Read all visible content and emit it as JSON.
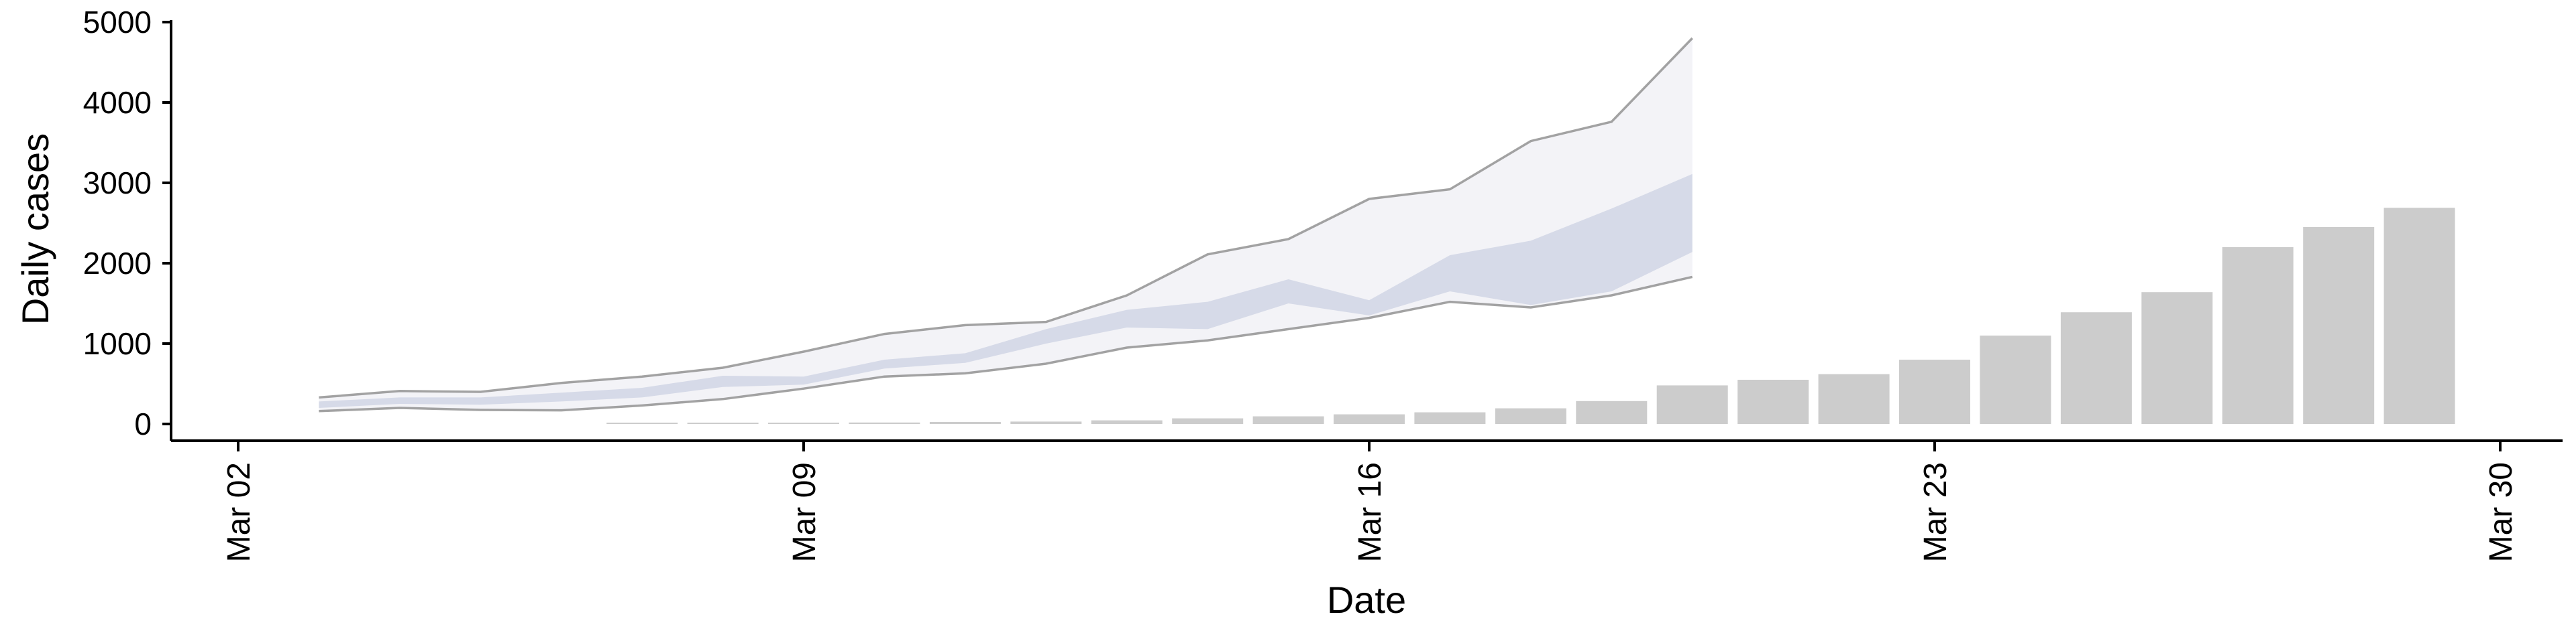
{
  "chart_data": {
    "type": "bar",
    "title": "",
    "xlabel": "Date",
    "ylabel": "Daily cases",
    "ylim": [
      0,
      5000
    ],
    "xlim": [
      "2020-03-02",
      "2020-03-30"
    ],
    "y_ticks": [
      "0",
      "1000",
      "2000",
      "3000",
      "4000",
      "5000"
    ],
    "x_ticks": [
      {
        "date": "2020-03-02",
        "label": "Mar 02"
      },
      {
        "date": "2020-03-09",
        "label": "Mar 09"
      },
      {
        "date": "2020-03-16",
        "label": "Mar 16"
      },
      {
        "date": "2020-03-23",
        "label": "Mar 23"
      },
      {
        "date": "2020-03-30",
        "label": "Mar 30"
      }
    ],
    "grid": false,
    "legend": "none",
    "colors": {
      "bars": "#cccccc",
      "band_outer": "#e9eaf1",
      "band_inner": "#ced3e3",
      "band_edge": "#8c8c8c"
    },
    "bars": [
      {
        "date": "2020-03-07",
        "value": 5
      },
      {
        "date": "2020-03-08",
        "value": 8
      },
      {
        "date": "2020-03-09",
        "value": 12
      },
      {
        "date": "2020-03-10",
        "value": 18
      },
      {
        "date": "2020-03-11",
        "value": 25
      },
      {
        "date": "2020-03-12",
        "value": 30
      },
      {
        "date": "2020-03-13",
        "value": 45
      },
      {
        "date": "2020-03-14",
        "value": 70
      },
      {
        "date": "2020-03-15",
        "value": 95
      },
      {
        "date": "2020-03-16",
        "value": 120
      },
      {
        "date": "2020-03-17",
        "value": 145
      },
      {
        "date": "2020-03-18",
        "value": 195
      },
      {
        "date": "2020-03-19",
        "value": 285
      },
      {
        "date": "2020-03-20",
        "value": 480
      },
      {
        "date": "2020-03-21",
        "value": 550
      },
      {
        "date": "2020-03-22",
        "value": 620
      },
      {
        "date": "2020-03-23",
        "value": 800
      },
      {
        "date": "2020-03-24",
        "value": 1100
      },
      {
        "date": "2020-03-25",
        "value": 1390
      },
      {
        "date": "2020-03-26",
        "value": 1640
      },
      {
        "date": "2020-03-27",
        "value": 2200
      },
      {
        "date": "2020-03-28",
        "value": 2450
      },
      {
        "date": "2020-03-29",
        "value": 2690
      }
    ],
    "band": [
      {
        "date": "2020-03-03",
        "outer_lo": 160,
        "inner_lo": 200,
        "inner_hi": 280,
        "outer_hi": 330
      },
      {
        "date": "2020-03-04",
        "outer_lo": 200,
        "inner_lo": 250,
        "inner_hi": 330,
        "outer_hi": 410
      },
      {
        "date": "2020-03-05",
        "outer_lo": 175,
        "inner_lo": 240,
        "inner_hi": 330,
        "outer_hi": 400
      },
      {
        "date": "2020-03-06",
        "outer_lo": 170,
        "inner_lo": 280,
        "inner_hi": 390,
        "outer_hi": 510
      },
      {
        "date": "2020-03-07",
        "outer_lo": 230,
        "inner_lo": 330,
        "inner_hi": 450,
        "outer_hi": 590
      },
      {
        "date": "2020-03-08",
        "outer_lo": 310,
        "inner_lo": 460,
        "inner_hi": 600,
        "outer_hi": 700
      },
      {
        "date": "2020-03-09",
        "outer_lo": 440,
        "inner_lo": 490,
        "inner_hi": 590,
        "outer_hi": 900
      },
      {
        "date": "2020-03-10",
        "outer_lo": 590,
        "inner_lo": 690,
        "inner_hi": 800,
        "outer_hi": 1120
      },
      {
        "date": "2020-03-11",
        "outer_lo": 630,
        "inner_lo": 760,
        "inner_hi": 880,
        "outer_hi": 1230
      },
      {
        "date": "2020-03-12",
        "outer_lo": 750,
        "inner_lo": 1000,
        "inner_hi": 1180,
        "outer_hi": 1270
      },
      {
        "date": "2020-03-13",
        "outer_lo": 950,
        "inner_lo": 1200,
        "inner_hi": 1420,
        "outer_hi": 1600
      },
      {
        "date": "2020-03-14",
        "outer_lo": 1040,
        "inner_lo": 1180,
        "inner_hi": 1520,
        "outer_hi": 2110
      },
      {
        "date": "2020-03-15",
        "outer_lo": 1180,
        "inner_lo": 1500,
        "inner_hi": 1800,
        "outer_hi": 2300
      },
      {
        "date": "2020-03-16",
        "outer_lo": 1320,
        "inner_lo": 1350,
        "inner_hi": 1540,
        "outer_hi": 2800
      },
      {
        "date": "2020-03-17",
        "outer_lo": 1520,
        "inner_lo": 1650,
        "inner_hi": 2100,
        "outer_hi": 2920
      },
      {
        "date": "2020-03-18",
        "outer_lo": 1450,
        "inner_lo": 1480,
        "inner_hi": 2280,
        "outer_hi": 3520
      },
      {
        "date": "2020-03-19",
        "outer_lo": 1600,
        "inner_lo": 1650,
        "inner_hi": 2680,
        "outer_hi": 3760
      },
      {
        "date": "2020-03-20",
        "outer_lo": 1830,
        "inner_lo": 2140,
        "inner_hi": 3110,
        "outer_hi": 4800
      }
    ]
  }
}
